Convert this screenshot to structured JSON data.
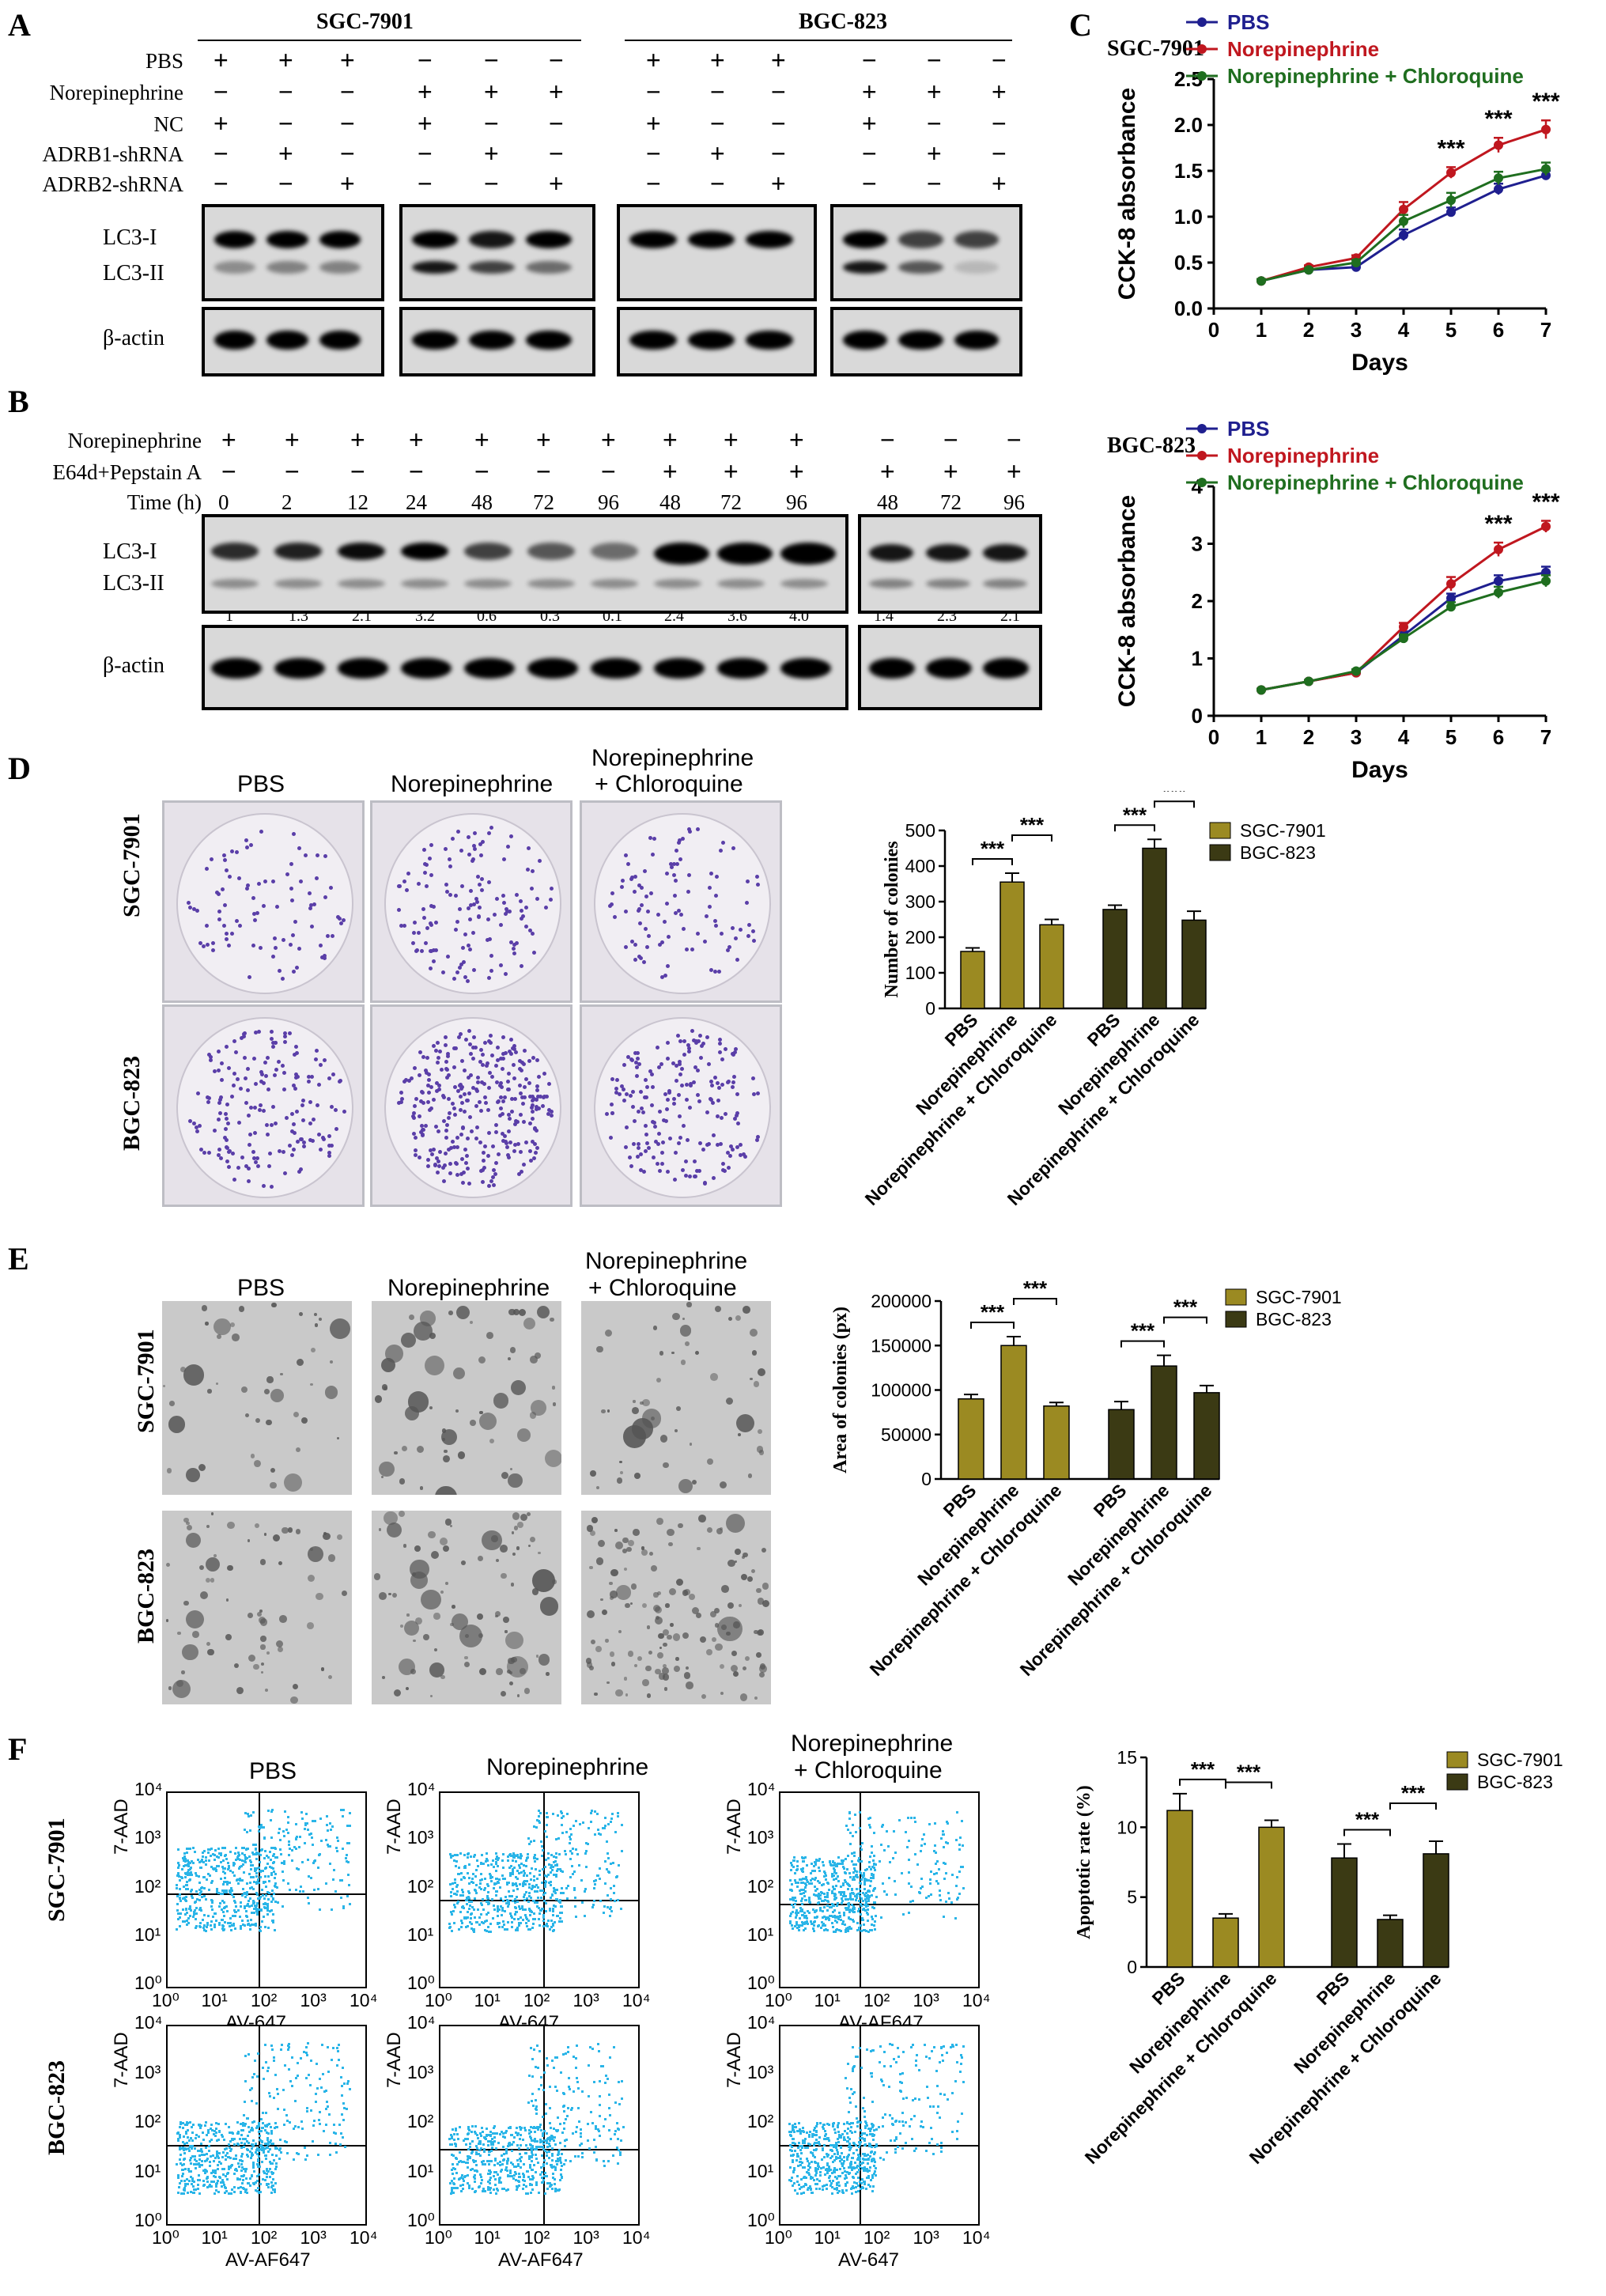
{
  "panelA": {
    "label": "A",
    "cell_lines": [
      "SGC-7901",
      "BGC-823"
    ],
    "row_labels": [
      "PBS",
      "Norepinephrine",
      "NC",
      "ADRB1-shRNA",
      "ADRB2-shRNA"
    ],
    "signs": [
      [
        "+",
        "+",
        "+",
        "−",
        "−",
        "−",
        "+",
        "+",
        "+",
        "−",
        "−",
        "−"
      ],
      [
        "−",
        "−",
        "−",
        "+",
        "+",
        "+",
        "−",
        "−",
        "−",
        "+",
        "+",
        "+"
      ],
      [
        "+",
        "−",
        "−",
        "+",
        "−",
        "−",
        "+",
        "−",
        "−",
        "+",
        "−",
        "−"
      ],
      [
        "−",
        "+",
        "−",
        "−",
        "+",
        "−",
        "−",
        "+",
        "−",
        "−",
        "+",
        "−"
      ],
      [
        "−",
        "−",
        "+",
        "−",
        "−",
        "+",
        "−",
        "−",
        "+",
        "−",
        "−",
        "+"
      ]
    ],
    "lc3_i": "LC3-I",
    "lc3_ii": "LC3-II",
    "actin": "β-actin"
  },
  "panelB": {
    "label": "B",
    "row_labels": [
      "Norepinephrine",
      "E64d+Pepstain A",
      "Time (h)"
    ],
    "norepinephrine": [
      "+",
      "+",
      "+",
      "+",
      "+",
      "+",
      "+",
      "+",
      "+",
      "+",
      "−",
      "−",
      "−"
    ],
    "inhibitor": [
      "−",
      "−",
      "−",
      "−",
      "−",
      "−",
      "−",
      "+",
      "+",
      "+",
      "+",
      "+",
      "+"
    ],
    "time": [
      "0",
      "2",
      "12",
      "24",
      "48",
      "72",
      "96",
      "48",
      "72",
      "96",
      "48",
      "72",
      "96"
    ],
    "ratios": [
      "1",
      "1.3",
      "2.1",
      "3.2",
      "0.6",
      "0.3",
      "0.1",
      "2.4",
      "3.6",
      "4.0",
      "1.4",
      "2.3",
      "2.1"
    ],
    "lc3_i": "LC3-I",
    "lc3_ii": "LC3-II",
    "actin": "β-actin"
  },
  "panelC": {
    "label": "C",
    "legend": [
      "PBS",
      "Norepinephrine",
      "Norepinephrine + Chloroquine"
    ],
    "colors": {
      "pbs": "#1f1f8f",
      "ne": "#c0171f",
      "nec": "#1f6e1f"
    },
    "significance": "***"
  },
  "panelD": {
    "label": "D",
    "columns": [
      "PBS",
      "Norepinephrine",
      "Norepinephrine",
      "+ Chloroquine"
    ],
    "rows": [
      "SGC-7901",
      "BGC-823"
    ],
    "legend": [
      "SGC-7901",
      "BGC-823"
    ],
    "colors": {
      "sgc": "#9b8a22",
      "bgc": "#3b3a14"
    },
    "significance": "***"
  },
  "panelE": {
    "label": "E",
    "columns": [
      "PBS",
      "Norepinephrine",
      "Norepinephrine",
      "+ Chloroquine"
    ],
    "rows": [
      "SGC-7901",
      "BGC-823"
    ],
    "legend": [
      "SGC-7901",
      "BGC-823"
    ],
    "significance": "***"
  },
  "panelF": {
    "label": "F",
    "columns": [
      "PBS",
      "Norepinephrine",
      "Norepinephrine",
      "+ Chloroquine"
    ],
    "rows": [
      "SGC-7901",
      "BGC-823"
    ],
    "flow_ylabel": "7-AAD",
    "flow_xlabels": [
      "AV-647",
      "AV-647",
      "AV-AF647",
      "AV-AF647",
      "AV-AF647",
      "AV-647"
    ],
    "flow_ticks": [
      "10⁰",
      "10¹",
      "10²",
      "10³",
      "10⁴"
    ],
    "legend": [
      "SGC-7901",
      "BGC-823"
    ],
    "significance": "***"
  },
  "chart_data": [
    {
      "type": "line",
      "name": "SGC-7901",
      "xlabel": "Days",
      "ylabel": "CCK-8 absorbance",
      "x": [
        1,
        2,
        3,
        4,
        5,
        6,
        7
      ],
      "xlim": [
        0,
        7
      ],
      "ylim": [
        0,
        2.5
      ],
      "xticks": [
        "0",
        "1",
        "2",
        "3",
        "4",
        "5",
        "6",
        "7"
      ],
      "yticks": [
        "0.0",
        "0.5",
        "1.0",
        "1.5",
        "2.0",
        "2.5"
      ],
      "series": [
        {
          "name": "PBS",
          "values": [
            0.3,
            0.42,
            0.45,
            0.8,
            1.05,
            1.3,
            1.45
          ],
          "err": [
            0.02,
            0.02,
            0.03,
            0.06,
            0.05,
            0.06,
            0.05
          ]
        },
        {
          "name": "Norepinephrine",
          "values": [
            0.3,
            0.45,
            0.55,
            1.08,
            1.48,
            1.78,
            1.95
          ],
          "err": [
            0.02,
            0.02,
            0.03,
            0.08,
            0.06,
            0.08,
            0.1
          ]
        },
        {
          "name": "Norepinephrine + Chloroquine",
          "values": [
            0.3,
            0.42,
            0.5,
            0.95,
            1.18,
            1.42,
            1.52
          ],
          "err": [
            0.02,
            0.02,
            0.03,
            0.07,
            0.08,
            0.07,
            0.07
          ]
        }
      ],
      "annotations": [
        {
          "x": 5,
          "text": "***"
        },
        {
          "x": 6,
          "text": "***"
        },
        {
          "x": 7,
          "text": "***"
        }
      ]
    },
    {
      "type": "line",
      "name": "BGC-823",
      "xlabel": "Days",
      "ylabel": "CCK-8 absorbance",
      "x": [
        1,
        2,
        3,
        4,
        5,
        6,
        7
      ],
      "xlim": [
        0,
        7
      ],
      "ylim": [
        0,
        4
      ],
      "xticks": [
        "0",
        "1",
        "2",
        "3",
        "4",
        "5",
        "6",
        "7"
      ],
      "yticks": [
        "0",
        "1",
        "2",
        "3",
        "4"
      ],
      "series": [
        {
          "name": "PBS",
          "values": [
            0.45,
            0.6,
            0.75,
            1.4,
            2.05,
            2.35,
            2.5
          ],
          "err": [
            0.02,
            0.02,
            0.03,
            0.07,
            0.08,
            0.1,
            0.1
          ]
        },
        {
          "name": "Norepinephrine",
          "values": [
            0.45,
            0.6,
            0.75,
            1.55,
            2.3,
            2.9,
            3.3
          ],
          "err": [
            0.02,
            0.02,
            0.03,
            0.07,
            0.12,
            0.12,
            0.1
          ]
        },
        {
          "name": "Norepinephrine + Chloroquine",
          "values": [
            0.45,
            0.6,
            0.78,
            1.35,
            1.9,
            2.15,
            2.35
          ],
          "err": [
            0.02,
            0.02,
            0.03,
            0.07,
            0.08,
            0.1,
            0.1
          ]
        }
      ],
      "annotations": [
        {
          "x": 6,
          "text": "***"
        },
        {
          "x": 7,
          "text": "***"
        }
      ]
    },
    {
      "type": "bar",
      "name": "Colony number",
      "ylabel": "Number of colonies",
      "ylim": [
        0,
        500
      ],
      "yticks": [
        "0",
        "100",
        "200",
        "300",
        "400",
        "500"
      ],
      "categories": [
        "PBS",
        "Norepinephrine",
        "Norepinephrine + Chloroquine"
      ],
      "series": [
        {
          "name": "SGC-7901",
          "values": [
            160,
            355,
            235
          ],
          "err": [
            10,
            25,
            15
          ]
        },
        {
          "name": "BGC-823",
          "values": [
            278,
            450,
            248
          ],
          "err": [
            12,
            25,
            25
          ]
        }
      ]
    },
    {
      "type": "bar",
      "name": "Colony area",
      "ylabel": "Area of colonies (px)",
      "ylim": [
        0,
        200000
      ],
      "yticks": [
        "0",
        "50000",
        "100000",
        "150000",
        "200000"
      ],
      "categories": [
        "PBS",
        "Norepinephrine",
        "Norepinephrine + Chloroquine"
      ],
      "series": [
        {
          "name": "SGC-7901",
          "values": [
            90000,
            150000,
            82000
          ],
          "err": [
            5000,
            10000,
            4000
          ]
        },
        {
          "name": "BGC-823",
          "values": [
            78000,
            127000,
            97000
          ],
          "err": [
            9000,
            12000,
            8000
          ]
        }
      ]
    },
    {
      "type": "bar",
      "name": "Apoptotic rate",
      "ylabel": "Apoptotic rate (%)",
      "ylim": [
        0,
        15
      ],
      "yticks": [
        "0",
        "5",
        "10",
        "15"
      ],
      "categories": [
        "PBS",
        "Norepinephrine",
        "Norepinephrine + Chloroquine"
      ],
      "series": [
        {
          "name": "SGC-7901",
          "values": [
            11.2,
            3.5,
            10.0
          ],
          "err": [
            1.2,
            0.3,
            0.5
          ]
        },
        {
          "name": "BGC-823",
          "values": [
            7.8,
            3.4,
            8.1
          ],
          "err": [
            1.0,
            0.3,
            0.9
          ]
        }
      ]
    }
  ]
}
